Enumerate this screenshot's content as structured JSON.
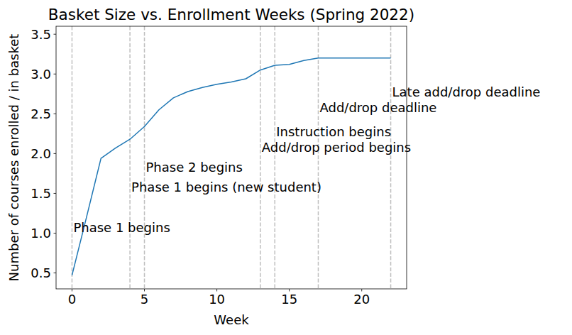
{
  "chart_data": {
    "type": "line",
    "title": "Basket Size vs. Enrollment Weeks (Spring 2022)",
    "x_label": "Week",
    "y_label": "Number of courses enrolled / in basket",
    "x": [
      0,
      1,
      2,
      3,
      4,
      5,
      6,
      7,
      8,
      9,
      10,
      11,
      12,
      13,
      14,
      15,
      16,
      17,
      18,
      19,
      20,
      21,
      22
    ],
    "values": [
      0.47,
      1.2,
      1.94,
      2.07,
      2.18,
      2.34,
      2.55,
      2.7,
      2.78,
      2.83,
      2.87,
      2.9,
      2.94,
      3.05,
      3.11,
      3.12,
      3.17,
      3.2,
      3.2,
      3.2,
      3.2,
      3.2,
      3.2
    ],
    "color": "#1f77b4",
    "xlim": [
      -1.1,
      23.1
    ],
    "ylim": [
      0.3,
      3.6
    ],
    "xticks": [
      0,
      5,
      10,
      15,
      20
    ],
    "yticks": [
      0.5,
      {
        "value": 1,
        "label": "1.0"
      },
      1.5,
      {
        "value": 2,
        "label": "2.0"
      },
      2.5,
      {
        "value": 3,
        "label": "3.0"
      },
      3.5
    ],
    "grid": false,
    "annotations": [
      {
        "x": 0,
        "y": 1.0,
        "text": "Phase 1 begins"
      },
      {
        "x": 4,
        "y": 1.5,
        "text": "Phase 1 begins (new student)"
      },
      {
        "x": 5,
        "y": 1.75,
        "text": "Phase 2 begins"
      },
      {
        "x": 13,
        "y": 2.0,
        "text": "Add/drop period begins"
      },
      {
        "x": 14,
        "y": 2.2,
        "text": "Instruction begins"
      },
      {
        "x": 17,
        "y": 2.5,
        "text": "Add/drop deadline"
      },
      {
        "x": 22,
        "y": 2.7,
        "text": "Late add/drop deadline"
      }
    ]
  }
}
